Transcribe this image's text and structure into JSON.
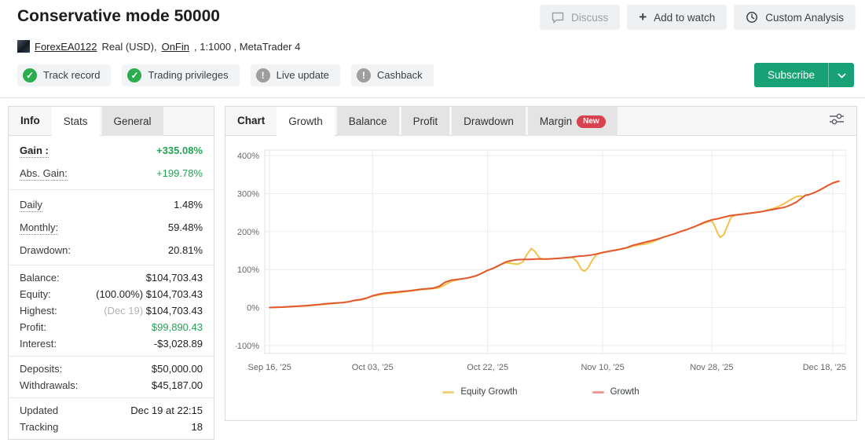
{
  "header": {
    "title": "Conservative mode 50000",
    "actions": {
      "discuss": "Discuss",
      "add_watch": "Add to watch",
      "custom_analysis": "Custom Analysis"
    },
    "subscribe_label": "Subscribe",
    "badges": [
      {
        "label": "Track record",
        "status": "ok"
      },
      {
        "label": "Trading privileges",
        "status": "ok"
      },
      {
        "label": "Live update",
        "status": "warn"
      },
      {
        "label": "Cashback",
        "status": "warn"
      }
    ]
  },
  "account": {
    "name": "ForexEA0122",
    "detail_1": "Real (USD),",
    "broker": "OnFin",
    "detail_2": ", 1:1000 , MetaTrader 4"
  },
  "sidebar": {
    "title": "Info",
    "tabs": [
      {
        "label": "Stats",
        "active": true
      },
      {
        "label": "General",
        "active": false
      }
    ],
    "groups": [
      {
        "loose": true,
        "rows": [
          {
            "label": "Gain :",
            "dotted": true,
            "bold": true,
            "value": "+335.08%",
            "green": true,
            "value_bold": true
          },
          {
            "label": "Abs. Gain:",
            "dotted": true,
            "value": "+199.78%",
            "green": true
          }
        ]
      },
      {
        "loose": true,
        "rows": [
          {
            "label": "Daily",
            "dotted": true,
            "value": "1.48%"
          },
          {
            "label": "Monthly:",
            "dotted": true,
            "value": "59.48%"
          },
          {
            "label": "Drawdown:",
            "value": "20.81%"
          }
        ]
      },
      {
        "rows": [
          {
            "label": "Balance:",
            "value": "$104,703.43"
          },
          {
            "label": "Equity:",
            "note": "(100.00%)",
            "value": "$104,703.43"
          },
          {
            "label": "Highest:",
            "note": "(Dec 19)",
            "note_muted": true,
            "value": "$104,703.43"
          },
          {
            "label": "Profit:",
            "value": "$99,890.43",
            "green": true
          },
          {
            "label": "Interest:",
            "value": "-$3,028.89"
          }
        ]
      },
      {
        "rows": [
          {
            "label": "Deposits:",
            "value": "$50,000.00"
          },
          {
            "label": "Withdrawals:",
            "value": "$45,187.00"
          }
        ]
      },
      {
        "rows": [
          {
            "label": "Updated",
            "value": "Dec 19 at 22:15"
          },
          {
            "label": "Tracking",
            "value": "18"
          }
        ]
      }
    ]
  },
  "chart_panel": {
    "title": "Chart",
    "tabs": [
      {
        "label": "Growth",
        "active": true
      },
      {
        "label": "Balance"
      },
      {
        "label": "Profit"
      },
      {
        "label": "Drawdown"
      },
      {
        "label": "Margin",
        "badge": "New"
      }
    ]
  },
  "chart_data": {
    "type": "line",
    "title": "Growth",
    "x_unit": "days since Sep 16, 2025",
    "xlim": [
      -0.8,
      95.2
    ],
    "ylim": [
      -121,
      415
    ],
    "grid": true,
    "legend_position": "bottom",
    "y_ticks": [
      400,
      300,
      200,
      100,
      0,
      -100
    ],
    "y_suffix": "%",
    "x_ticks": [
      {
        "day": 0,
        "label": "Sep 16, '25"
      },
      {
        "day": 17,
        "label": "Oct 03, '25"
      },
      {
        "day": 36,
        "label": "Oct 22, '25"
      },
      {
        "day": 55,
        "label": "Nov 10, '25"
      },
      {
        "day": 73,
        "label": "Nov 28, '25"
      },
      {
        "day": 93,
        "label": "Dec 18, '25"
      }
    ],
    "series": [
      {
        "name": "Equity Growth",
        "color": "#f2c24a",
        "legend_color": "#f0d277",
        "points": [
          [
            0,
            0
          ],
          [
            2,
            1
          ],
          [
            4,
            3
          ],
          [
            6,
            4
          ],
          [
            8,
            7
          ],
          [
            10,
            10
          ],
          [
            12,
            13
          ],
          [
            13,
            15
          ],
          [
            14,
            18
          ],
          [
            15,
            20
          ],
          [
            16,
            24
          ],
          [
            17,
            30
          ],
          [
            18,
            33
          ],
          [
            19,
            36
          ],
          [
            21,
            39
          ],
          [
            23,
            43
          ],
          [
            25,
            47
          ],
          [
            27,
            50
          ],
          [
            28,
            52
          ],
          [
            29,
            60
          ],
          [
            30,
            69
          ],
          [
            31,
            73
          ],
          [
            32,
            76
          ],
          [
            33,
            79
          ],
          [
            34,
            83
          ],
          [
            35,
            90
          ],
          [
            36,
            98
          ],
          [
            37,
            104
          ],
          [
            38,
            112
          ],
          [
            39,
            118
          ],
          [
            40,
            116
          ],
          [
            41,
            114
          ],
          [
            41.8,
            120
          ],
          [
            42.5,
            140
          ],
          [
            43.2,
            155
          ],
          [
            43.8,
            148
          ],
          [
            44.5,
            132
          ],
          [
            45,
            128
          ],
          [
            46,
            128
          ],
          [
            48,
            130
          ],
          [
            50,
            132
          ],
          [
            50.8,
            120
          ],
          [
            51.5,
            100
          ],
          [
            52,
            96
          ],
          [
            52.6,
            105
          ],
          [
            53.3,
            125
          ],
          [
            54,
            140
          ],
          [
            55,
            145
          ],
          [
            56,
            148
          ],
          [
            57,
            151
          ],
          [
            58,
            154
          ],
          [
            59,
            157
          ],
          [
            60,
            162
          ],
          [
            61,
            165
          ],
          [
            62,
            167
          ],
          [
            63,
            172
          ],
          [
            64,
            178
          ],
          [
            65,
            185
          ],
          [
            66,
            190
          ],
          [
            67,
            195
          ],
          [
            68,
            201
          ],
          [
            69,
            206
          ],
          [
            70,
            212
          ],
          [
            71,
            218
          ],
          [
            72,
            224
          ],
          [
            73,
            229
          ],
          [
            73.5,
            215
          ],
          [
            74,
            195
          ],
          [
            74.4,
            185
          ],
          [
            75,
            192
          ],
          [
            75.6,
            215
          ],
          [
            76.2,
            238
          ],
          [
            77,
            244
          ],
          [
            78,
            246
          ],
          [
            79,
            248
          ],
          [
            80,
            250
          ],
          [
            81,
            252
          ],
          [
            82,
            256
          ],
          [
            83,
            260
          ],
          [
            84,
            266
          ],
          [
            85,
            274
          ],
          [
            86,
            284
          ],
          [
            87,
            292
          ],
          [
            87.6,
            294
          ],
          [
            88,
            292
          ],
          [
            88.5,
            296
          ],
          [
            89,
            297
          ],
          [
            90,
            303
          ],
          [
            91,
            311
          ],
          [
            92,
            320
          ],
          [
            93,
            328
          ],
          [
            94,
            333
          ]
        ]
      },
      {
        "name": "Growth",
        "color": "#e2582f",
        "legend_color": "#ef9a92",
        "points": [
          [
            0,
            0
          ],
          [
            2,
            1
          ],
          [
            4,
            3
          ],
          [
            6,
            5
          ],
          [
            8,
            8
          ],
          [
            10,
            11
          ],
          [
            12,
            13
          ],
          [
            13,
            15
          ],
          [
            14,
            19
          ],
          [
            15,
            21
          ],
          [
            16,
            25
          ],
          [
            17,
            31
          ],
          [
            18,
            35
          ],
          [
            19,
            38
          ],
          [
            21,
            41
          ],
          [
            23,
            44
          ],
          [
            25,
            48
          ],
          [
            27,
            51
          ],
          [
            28,
            56
          ],
          [
            29,
            67
          ],
          [
            30,
            72
          ],
          [
            31,
            74
          ],
          [
            32,
            76
          ],
          [
            33,
            79
          ],
          [
            34,
            83
          ],
          [
            35,
            90
          ],
          [
            36,
            98
          ],
          [
            37,
            104
          ],
          [
            38,
            112
          ],
          [
            39,
            120
          ],
          [
            40,
            124
          ],
          [
            41,
            126
          ],
          [
            42,
            127
          ],
          [
            43,
            127
          ],
          [
            44,
            128
          ],
          [
            45,
            128
          ],
          [
            46,
            128
          ],
          [
            48,
            130
          ],
          [
            50,
            133
          ],
          [
            51,
            135
          ],
          [
            52,
            136
          ],
          [
            53,
            138
          ],
          [
            54,
            141
          ],
          [
            55,
            145
          ],
          [
            56,
            148
          ],
          [
            57,
            151
          ],
          [
            58,
            154
          ],
          [
            59,
            158
          ],
          [
            60,
            164
          ],
          [
            61,
            168
          ],
          [
            62,
            172
          ],
          [
            63,
            176
          ],
          [
            64,
            180
          ],
          [
            65,
            185
          ],
          [
            66,
            190
          ],
          [
            67,
            195
          ],
          [
            68,
            201
          ],
          [
            69,
            206
          ],
          [
            70,
            212
          ],
          [
            71,
            219
          ],
          [
            72,
            226
          ],
          [
            73,
            231
          ],
          [
            74,
            234
          ],
          [
            75,
            238
          ],
          [
            76,
            242
          ],
          [
            77,
            244
          ],
          [
            78,
            246
          ],
          [
            79,
            248
          ],
          [
            80,
            250
          ],
          [
            81,
            252
          ],
          [
            82,
            255
          ],
          [
            83,
            258
          ],
          [
            84,
            261
          ],
          [
            85,
            264
          ],
          [
            86,
            270
          ],
          [
            87,
            278
          ],
          [
            88,
            290
          ],
          [
            88.5,
            296
          ],
          [
            89,
            297
          ],
          [
            90,
            303
          ],
          [
            91,
            311
          ],
          [
            92,
            320
          ],
          [
            93,
            328
          ],
          [
            94,
            333
          ]
        ]
      }
    ]
  }
}
